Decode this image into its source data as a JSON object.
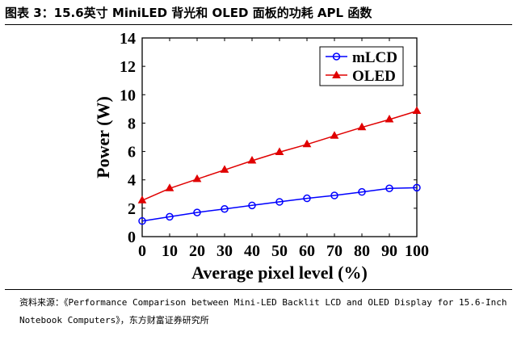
{
  "figure": {
    "title": "图表 3：15.6英寸 MiniLED 背光和 OLED 面板的功耗 APL 函数",
    "source_prefix": "资料来源：",
    "source_text": "《Performance Comparison between Mini-LED Backlit LCD and OLED Display for 15.6-Inch Notebook Computers》，东方财富证券研究所"
  },
  "colors": {
    "mlcd": "#0000ff",
    "oled": "#e00000",
    "axis": "#000000"
  },
  "chart_data": {
    "type": "line",
    "title": "",
    "xlabel": "Average pixel level (%)",
    "ylabel": "Power (W)",
    "x": [
      0,
      10,
      20,
      30,
      40,
      50,
      60,
      70,
      80,
      90,
      100
    ],
    "xlim": [
      0,
      100
    ],
    "ylim": [
      0,
      14
    ],
    "xticks": [
      0,
      10,
      20,
      30,
      40,
      50,
      60,
      70,
      80,
      90,
      100
    ],
    "yticks": [
      0,
      2,
      4,
      6,
      8,
      10,
      12,
      14
    ],
    "grid": false,
    "legend_position": "top-right",
    "series": [
      {
        "name": "mLCD",
        "marker": "circle",
        "color": "#0000ff",
        "values": [
          1.1,
          1.4,
          1.7,
          1.95,
          2.2,
          2.45,
          2.7,
          2.9,
          3.15,
          3.4,
          3.45
        ]
      },
      {
        "name": "OLED",
        "marker": "triangle",
        "color": "#e00000",
        "values": [
          2.55,
          3.4,
          4.05,
          4.7,
          5.35,
          5.95,
          6.5,
          7.1,
          7.7,
          8.25,
          8.85
        ]
      }
    ]
  }
}
